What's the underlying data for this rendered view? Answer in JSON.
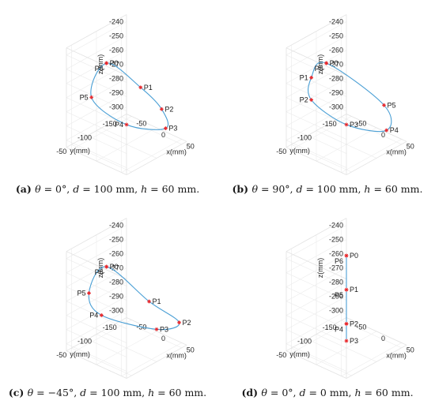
{
  "chart_data": [
    {
      "type": "line3d",
      "panel_label": "a",
      "caption_parts": [
        "θ",
        " = 0°, ",
        "d",
        " = 100 mm, ",
        "h",
        " = 60 mm."
      ],
      "xlabel": "x(mm)",
      "ylabel": "y(mm)",
      "zlabel": "z(mm)",
      "zticks": [
        "-240",
        "-250",
        "-260",
        "-270",
        "-280",
        "-290",
        "-300"
      ],
      "yticks": [
        "-50",
        "-100",
        "-150"
      ],
      "xticks": [
        "50",
        "0",
        "-50"
      ],
      "line_color": "#4a9fd5",
      "marker_color": "#e8262a",
      "points": [
        {
          "label": "P0",
          "x": 0,
          "y": -60,
          "z": -240
        },
        {
          "label": "P1",
          "x": 43,
          "y": -85,
          "z": -255
        },
        {
          "label": "P2",
          "x": 50,
          "y": -120,
          "z": -276
        },
        {
          "label": "P3",
          "x": 25,
          "y": -153,
          "z": -300
        },
        {
          "label": "P4",
          "x": -25,
          "y": -125,
          "z": -300
        },
        {
          "label": "P5",
          "x": -50,
          "y": -80,
          "z": -276
        },
        {
          "label": "P6",
          "x": 0,
          "y": -60,
          "z": -240
        }
      ]
    },
    {
      "type": "line3d",
      "panel_label": "b",
      "caption_parts": [
        "θ",
        " = 90°, ",
        "d",
        " = 100 mm, ",
        "h",
        " = 60 mm."
      ],
      "xlabel": "x(mm)",
      "ylabel": "y(mm)",
      "zlabel": "z(mm)",
      "zticks": [
        "-240",
        "-250",
        "-260",
        "-270",
        "-280",
        "-290",
        "-300"
      ],
      "yticks": [
        "-50",
        "-100",
        "-150"
      ],
      "xticks": [
        "50",
        "0",
        "-50"
      ],
      "line_color": "#4a9fd5",
      "marker_color": "#e8262a",
      "points": [
        {
          "label": "P0",
          "x": 0,
          "y": -60,
          "z": -240
        },
        {
          "label": "P1",
          "x": -30,
          "y": -60,
          "z": -255
        },
        {
          "label": "P2",
          "x": -45,
          "y": -75,
          "z": -276
        },
        {
          "label": "P3",
          "x": -25,
          "y": -125,
          "z": -300
        },
        {
          "label": "P4",
          "x": 30,
          "y": -150,
          "z": -300
        },
        {
          "label": "P5",
          "x": 45,
          "y": -130,
          "z": -276
        },
        {
          "label": "P6",
          "x": 0,
          "y": -60,
          "z": -240
        }
      ]
    },
    {
      "type": "line3d",
      "panel_label": "c",
      "caption_parts": [
        "θ",
        " = −45°, ",
        "d",
        " = 100 mm, ",
        "h",
        " = 60 mm."
      ],
      "xlabel": "x(mm)",
      "ylabel": "y(mm)",
      "zlabel": "z(mm)",
      "zticks": [
        "-240",
        "-250",
        "-260",
        "-270",
        "-280",
        "-290",
        "-300"
      ],
      "yticks": [
        "-50",
        "-100",
        "-150"
      ],
      "xticks": [
        "50",
        "0",
        "-50"
      ],
      "line_color": "#4a9fd5",
      "marker_color": "#e8262a",
      "points": [
        {
          "label": "P0",
          "x": 0,
          "y": -60,
          "z": -240
        },
        {
          "label": "P1",
          "x": 45,
          "y": -100,
          "z": -265
        },
        {
          "label": "P2",
          "x": 55,
          "y": -150,
          "z": -288
        },
        {
          "label": "P3",
          "x": 10,
          "y": -150,
          "z": -300
        },
        {
          "label": "P4",
          "x": -50,
          "y": -100,
          "z": -290
        },
        {
          "label": "P5",
          "x": -40,
          "y": -65,
          "z": -266
        },
        {
          "label": "P6",
          "x": 0,
          "y": -60,
          "z": -240
        }
      ]
    },
    {
      "type": "line3d",
      "panel_label": "d",
      "caption_parts": [
        "θ",
        " = 0°, ",
        "d",
        " = 0 mm, ",
        "h",
        " = 60 mm."
      ],
      "xlabel": "x(mm)",
      "ylabel": "y(mm)",
      "zlabel": "z(mm)",
      "zticks": [
        "-240",
        "-250",
        "-260",
        "-270",
        "-280",
        "-290",
        "-300"
      ],
      "yticks": [
        "-50",
        "-100",
        "-150"
      ],
      "xticks": [
        "50",
        "0",
        "-50"
      ],
      "line_color": "#4a9fd5",
      "marker_color": "#e8262a",
      "points": [
        {
          "label": "P0",
          "x": 0,
          "y": -100,
          "z": -240
        },
        {
          "label": "P1",
          "x": 0,
          "y": -100,
          "z": -264
        },
        {
          "label": "P2",
          "x": 0,
          "y": -100,
          "z": -288
        },
        {
          "label": "P3",
          "x": 0,
          "y": -100,
          "z": -300
        },
        {
          "label": "P4",
          "x": 0,
          "y": -100,
          "z": -288
        },
        {
          "label": "P5",
          "x": 0,
          "y": -100,
          "z": -264
        },
        {
          "label": "P6",
          "x": 0,
          "y": -100,
          "z": -240
        }
      ]
    }
  ]
}
